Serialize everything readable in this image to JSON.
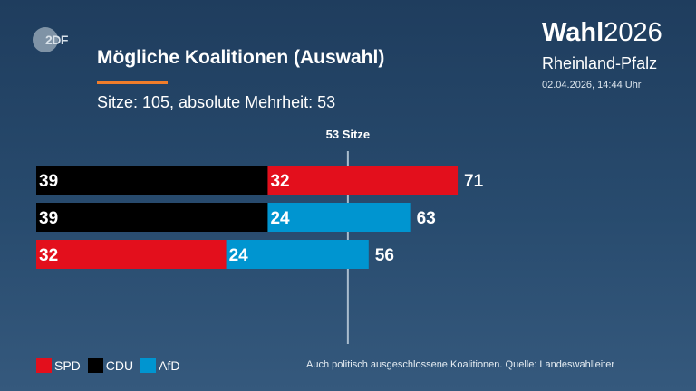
{
  "brand": {
    "logo_text": "2DF",
    "wordmark_bold": "Wahl",
    "wordmark_year": "2026",
    "region": "Rheinland-Pfalz",
    "timestamp": "02.04.2026, 14:44 Uhr"
  },
  "header": {
    "title": "Mögliche Koalitionen (Auswahl)",
    "subtitle": "Sitze: 105, absolute Mehrheit: 53"
  },
  "colors": {
    "SPD": "#e30f1c",
    "CDU": "#000000",
    "AfD": "#0095d0",
    "accent": "#f07d2a"
  },
  "chart_data": {
    "type": "bar",
    "orientation": "horizontal-stacked",
    "total_seats": 105,
    "majority": 53,
    "majority_label": "53 Sitze",
    "xlim": [
      0,
      105
    ],
    "grid": false,
    "legend_position": "bottom-left",
    "rows": [
      {
        "segments": [
          {
            "party": "CDU",
            "value": 39
          },
          {
            "party": "SPD",
            "value": 32
          }
        ],
        "total": 71
      },
      {
        "segments": [
          {
            "party": "CDU",
            "value": 39
          },
          {
            "party": "AfD",
            "value": 24
          }
        ],
        "total": 63
      },
      {
        "segments": [
          {
            "party": "SPD",
            "value": 32
          },
          {
            "party": "AfD",
            "value": 24
          }
        ],
        "total": 56
      }
    ]
  },
  "legend": [
    {
      "label": "SPD",
      "color": "#e30f1c"
    },
    {
      "label": "CDU",
      "color": "#000000"
    },
    {
      "label": "AfD",
      "color": "#0095d0"
    }
  ],
  "footnote": "Auch politisch ausgeschlossene Koalitionen. Quelle: Landeswahlleiter"
}
